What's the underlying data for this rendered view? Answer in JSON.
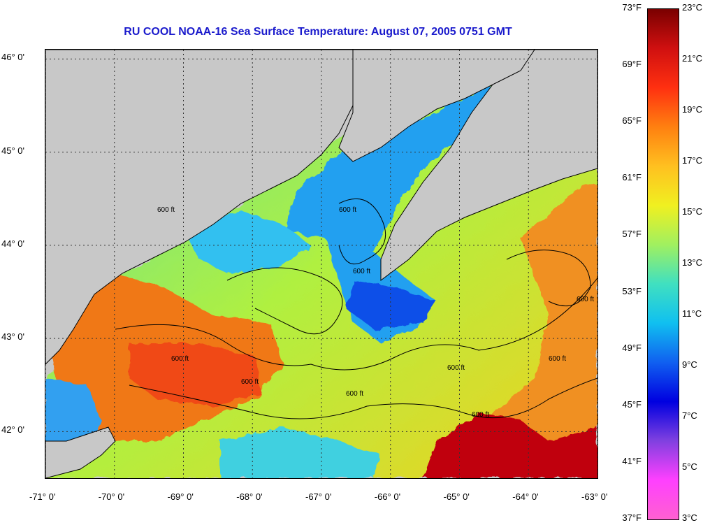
{
  "title": {
    "text": "RU COOL  NOAA-16  Sea Surface Temperature:  August 07, 2005 0751 GMT",
    "color": "#1a1acc"
  },
  "map": {
    "land_color": "#c8c8c8",
    "lon_range": [
      -71,
      -63
    ],
    "lat_range": [
      41.5,
      46.1
    ],
    "lon_labels": [
      "-71° 0'",
      "-70° 0'",
      "-69° 0'",
      "-68° 0'",
      "-67° 0'",
      "-66° 0'",
      "-65° 0'",
      "-64° 0'",
      "-63° 0'"
    ],
    "lat_labels": [
      "46° 0'",
      "45° 0'",
      "44° 0'",
      "43° 0'",
      "42° 0'"
    ],
    "contour_label": "600 ft"
  },
  "colorbar": {
    "fahrenheit_labels": [
      "73°F",
      "69°F",
      "65°F",
      "61°F",
      "57°F",
      "53°F",
      "49°F",
      "45°F",
      "41°F",
      "37°F"
    ],
    "celsius_labels": [
      "23°C",
      "21°C",
      "19°C",
      "17°C",
      "15°C",
      "13°C",
      "11°C",
      "9°C",
      "7°C",
      "5°C",
      "3°C"
    ],
    "colors": [
      "#7a0000",
      "#d01010",
      "#ff3010",
      "#ff8010",
      "#ffc020",
      "#f0f020",
      "#a0f060",
      "#40e0c0",
      "#10c0f0",
      "#1060f0",
      "#0000e0",
      "#8040e0",
      "#ff40ff",
      "#ff60d0"
    ]
  }
}
